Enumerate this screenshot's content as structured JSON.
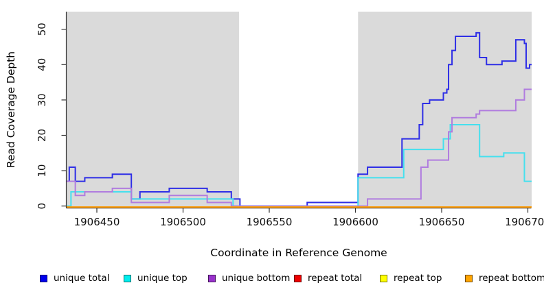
{
  "chart_data": {
    "type": "line",
    "subtype": "step-after",
    "title": "",
    "xlabel": "Coordinate in Reference Genome",
    "ylabel": "Read Coverage Depth",
    "xlim": [
      1906432.5,
      1906702.2
    ],
    "ylim": [
      0,
      55
    ],
    "grid": false,
    "x_ticks": [
      1906450,
      1906500,
      1906550,
      1906600,
      1906650,
      1906700
    ],
    "x_tick_labels": [
      "1906450",
      "1906500",
      "1906550",
      "1906600",
      "1906650",
      "1906700"
    ],
    "y_ticks": [
      0,
      10,
      20,
      30,
      40,
      50
    ],
    "y_tick_labels": [
      "0",
      "10",
      "20",
      "30",
      "40",
      "50"
    ],
    "plot_background": "#ffffff",
    "shaded_regions": {
      "color": "#DADADA",
      "regions": [
        [
          1906432.5,
          1906532.5
        ],
        [
          1906601.5,
          1906702.2
        ]
      ]
    },
    "series": [
      {
        "name": "unique total",
        "line_color": "#2E2EE6",
        "points": [
          [
            1906432.5,
            7
          ],
          [
            1906434,
            11
          ],
          [
            1906437.5,
            7
          ],
          [
            1906443,
            8
          ],
          [
            1906459,
            9
          ],
          [
            1906470,
            2
          ],
          [
            1906475,
            4
          ],
          [
            1906492,
            5
          ],
          [
            1906514,
            4
          ],
          [
            1906528,
            2
          ],
          [
            1906533,
            0
          ],
          [
            1906572,
            1
          ],
          [
            1906601.5,
            9
          ],
          [
            1906607,
            11
          ],
          [
            1906627,
            19
          ],
          [
            1906637,
            23
          ],
          [
            1906639,
            29
          ],
          [
            1906643,
            30
          ],
          [
            1906651,
            32
          ],
          [
            1906653,
            33
          ],
          [
            1906654,
            40
          ],
          [
            1906656,
            44
          ],
          [
            1906658,
            48
          ],
          [
            1906670,
            49
          ],
          [
            1906672,
            42
          ],
          [
            1906676,
            40
          ],
          [
            1906685,
            41
          ],
          [
            1906693,
            47
          ],
          [
            1906698,
            46
          ],
          [
            1906699,
            39
          ],
          [
            1906701,
            40
          ]
        ]
      },
      {
        "name": "unique top",
        "line_color": "#45E0EE",
        "points": [
          [
            1906432.5,
            0
          ],
          [
            1906435,
            4
          ],
          [
            1906470,
            2
          ],
          [
            1906529,
            0
          ],
          [
            1906601.5,
            8
          ],
          [
            1906628,
            16
          ],
          [
            1906651,
            19
          ],
          [
            1906655,
            23
          ],
          [
            1906672,
            14
          ],
          [
            1906686,
            15
          ],
          [
            1906698,
            7
          ]
        ]
      },
      {
        "name": "unique bottom",
        "line_color": "#B07CDF",
        "points": [
          [
            1906432.5,
            7
          ],
          [
            1906437.5,
            3
          ],
          [
            1906443,
            4
          ],
          [
            1906459,
            5
          ],
          [
            1906470,
            1
          ],
          [
            1906492,
            3
          ],
          [
            1906514,
            1
          ],
          [
            1906528,
            0
          ],
          [
            1906607,
            2
          ],
          [
            1906638,
            11
          ],
          [
            1906642,
            13
          ],
          [
            1906654,
            21
          ],
          [
            1906656,
            25
          ],
          [
            1906670,
            26
          ],
          [
            1906672,
            27
          ],
          [
            1906693,
            30
          ],
          [
            1906698,
            33
          ]
        ]
      },
      {
        "name": "repeat total",
        "line_color": "#D01818",
        "points": [
          [
            1906432.5,
            0
          ]
        ]
      },
      {
        "name": "repeat top",
        "line_color": "#F2F20C",
        "points": [
          [
            1906432.5,
            0
          ]
        ]
      },
      {
        "name": "repeat bottom",
        "line_color": "#FF9C10",
        "points": [
          [
            1906432.5,
            0
          ]
        ]
      }
    ],
    "legend": [
      {
        "label": "unique total",
        "fill": "#0000EE"
      },
      {
        "label": "unique top",
        "fill": "#00EEEE"
      },
      {
        "label": "unique bottom",
        "fill": "#9932CC"
      },
      {
        "label": "repeat total",
        "fill": "#EE0000"
      },
      {
        "label": "repeat top",
        "fill": "#FFFF00"
      },
      {
        "label": "repeat bottom",
        "fill": "#FFA500"
      }
    ],
    "legend_position": "bottom"
  }
}
